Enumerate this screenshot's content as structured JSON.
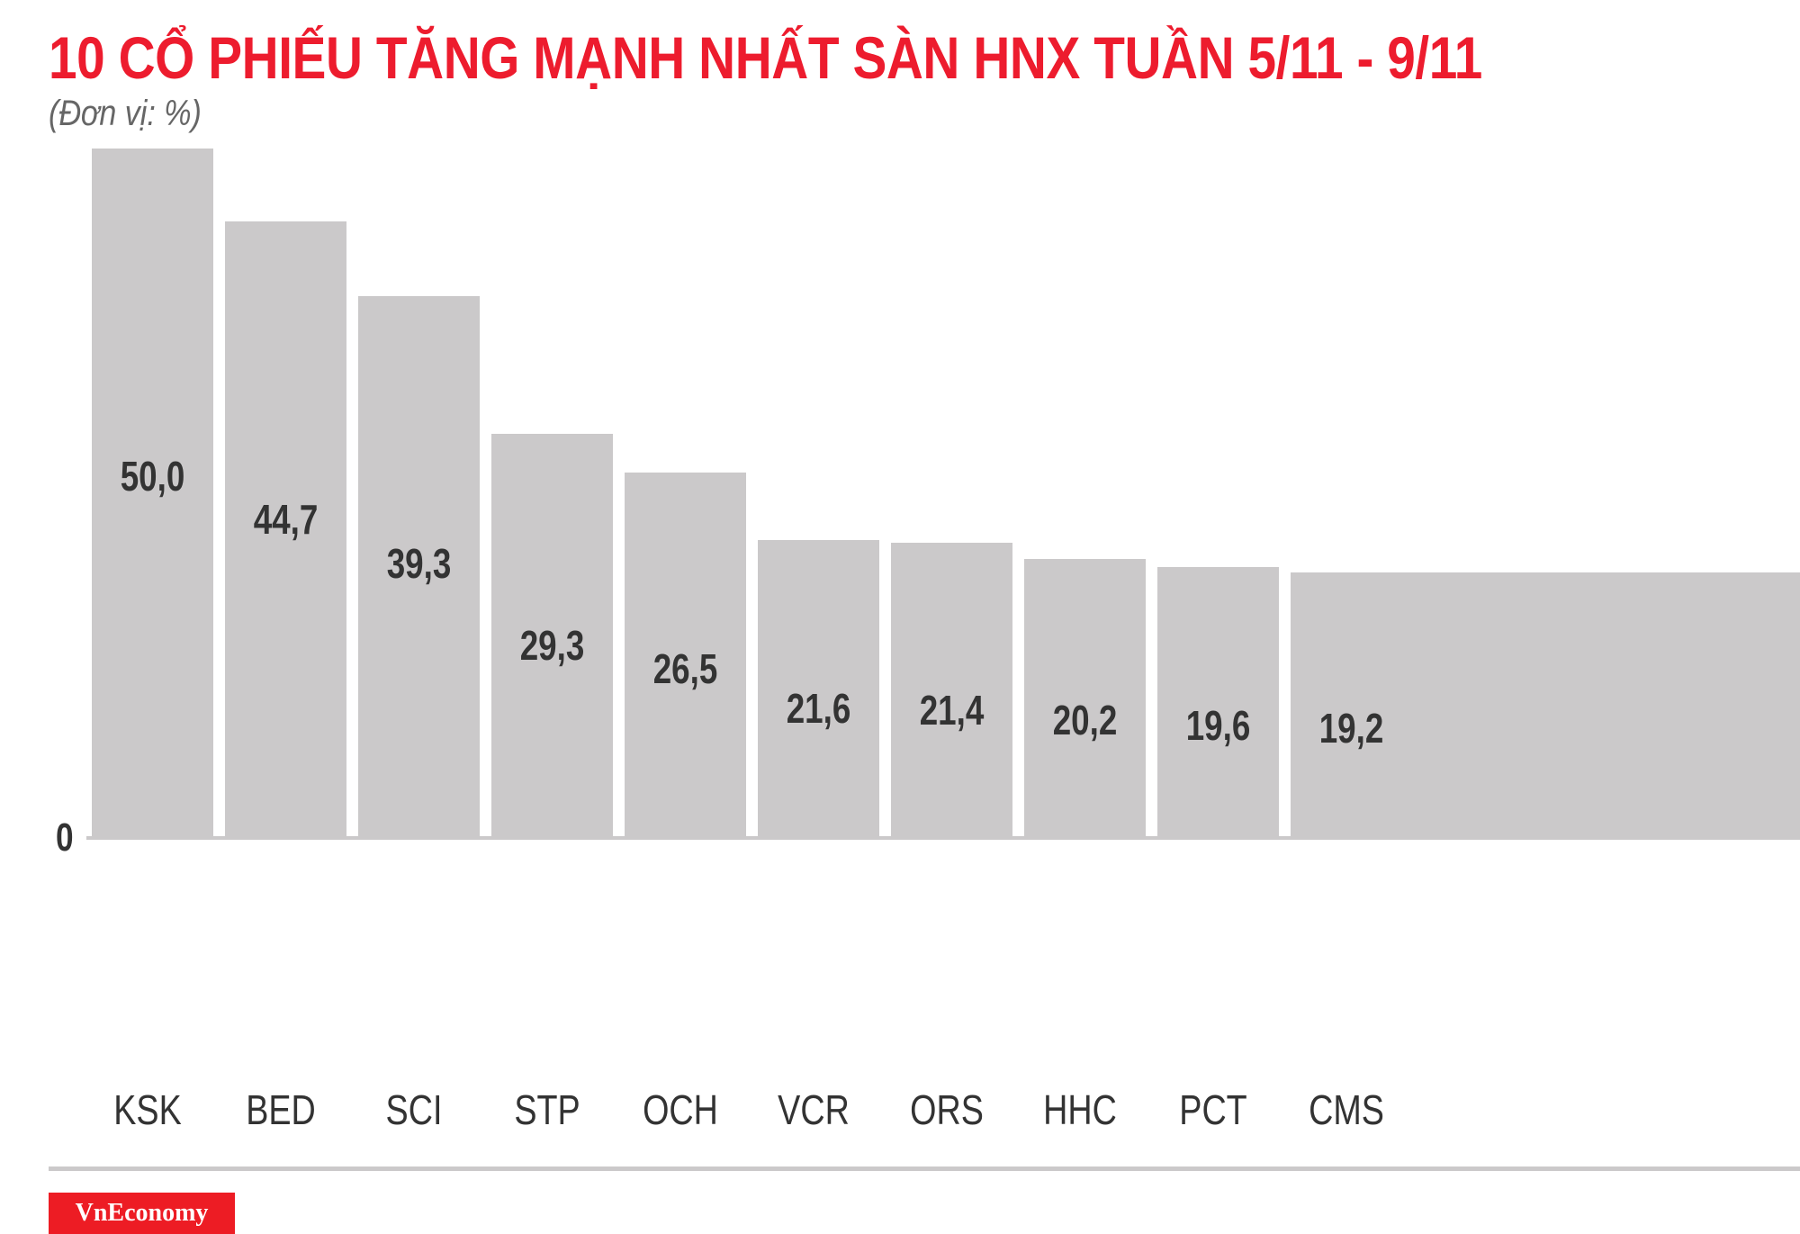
{
  "header": {
    "title": "10 CỔ PHIẾU TĂNG MẠNH NHẤT SÀN HNX TUẦN 5/11 - 9/11",
    "subtitle": "(Đơn vị: %)"
  },
  "axis": {
    "zero_label": "0"
  },
  "colors": {
    "title": "#ed1c2e",
    "bar": "#cbc9ca",
    "text": "#333333",
    "brand_bg": "#ed1c24"
  },
  "footer": {
    "brand": "VnEconomy"
  },
  "chart_data": {
    "type": "bar",
    "title": "10 CỔ PHIẾU TĂNG MẠNH NHẤT SÀN HNX TUẦN 5/11 - 9/11",
    "subtitle": "(Đơn vị: %)",
    "xlabel": "",
    "ylabel": "%",
    "ylim": [
      0,
      50
    ],
    "grid": false,
    "legend": null,
    "categories": [
      "KSK",
      "BED",
      "SCI",
      "STP",
      "OCH",
      "VCR",
      "ORS",
      "HHC",
      "PCT",
      "CMS"
    ],
    "values": [
      50.0,
      44.7,
      39.3,
      29.3,
      26.5,
      21.6,
      21.4,
      20.2,
      19.6,
      19.2
    ],
    "value_labels": [
      "50,0",
      "44,7",
      "39,3",
      "29,3",
      "26,5",
      "21,6",
      "21,4",
      "20,2",
      "19,6",
      "19,2"
    ]
  }
}
